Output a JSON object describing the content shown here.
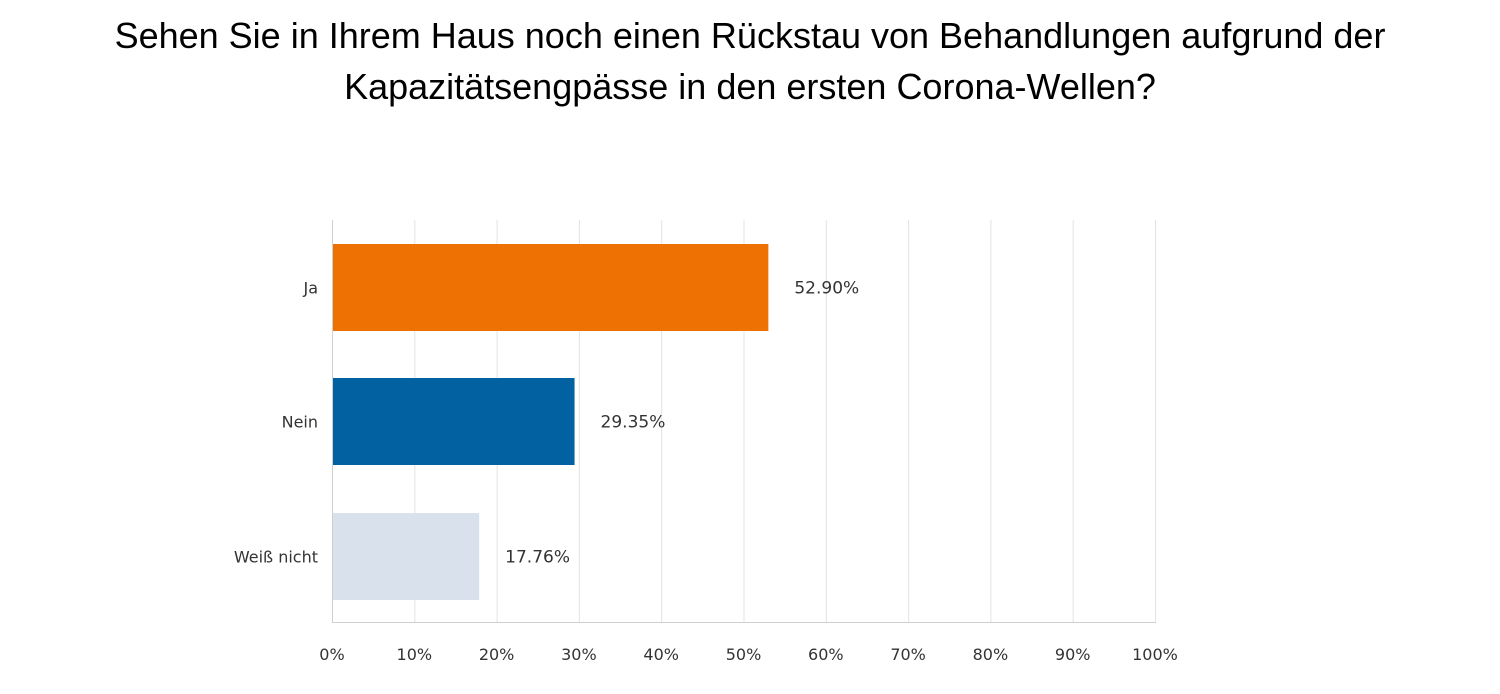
{
  "chart_data": {
    "type": "bar",
    "orientation": "horizontal",
    "title_lines": [
      "Sehen Sie in Ihrem Haus noch einen Rückstau von Behandlungen aufgrund der",
      "Kapazitätsengpässe in den ersten Corona-Wellen?"
    ],
    "categories": [
      "Ja",
      "Nein",
      "Weiß nicht"
    ],
    "values": [
      52.9,
      29.35,
      17.76
    ],
    "data_labels": [
      "52.90%",
      "29.35%",
      "17.76%"
    ],
    "colors": [
      "#EE7203",
      "#0261A0",
      "#D9E2EC"
    ],
    "xlim": [
      0,
      100
    ],
    "xticks": [
      0,
      10,
      20,
      30,
      40,
      50,
      60,
      70,
      80,
      90,
      100
    ],
    "xtick_labels": [
      "0%",
      "10%",
      "20%",
      "30%",
      "40%",
      "50%",
      "60%",
      "70%",
      "80%",
      "90%",
      "100%"
    ],
    "grid": true,
    "legend": "none",
    "xlabel": "",
    "ylabel": ""
  }
}
